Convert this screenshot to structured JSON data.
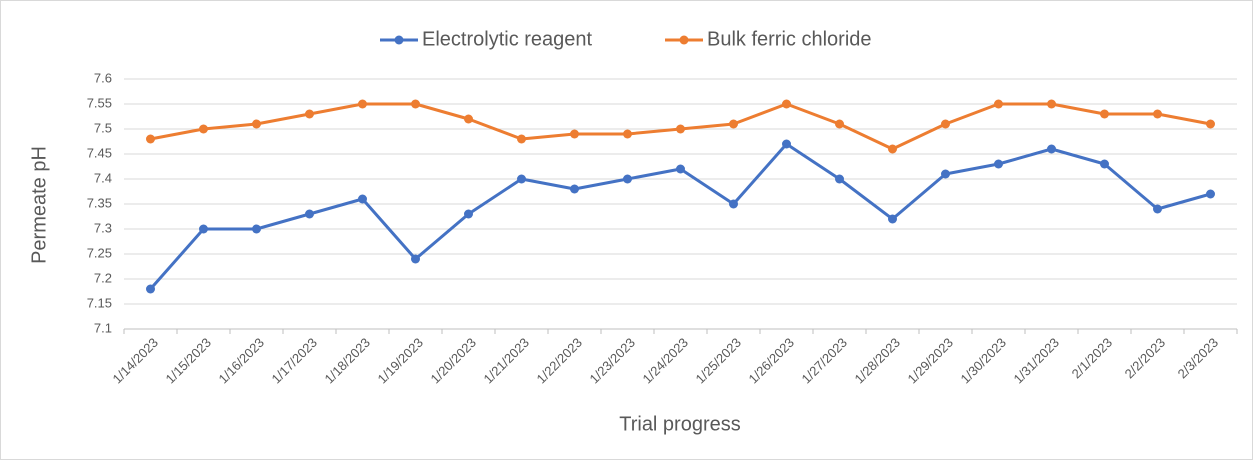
{
  "chart_data": {
    "type": "line",
    "x_label": "Trial progress",
    "y_label": "Permeate pH",
    "categories": [
      "1/14/2023",
      "1/15/2023",
      "1/16/2023",
      "1/17/2023",
      "1/18/2023",
      "1/19/2023",
      "1/20/2023",
      "1/21/2023",
      "1/22/2023",
      "1/23/2023",
      "1/24/2023",
      "1/25/2023",
      "1/26/2023",
      "1/27/2023",
      "1/28/2023",
      "1/29/2023",
      "1/30/2023",
      "1/31/2023",
      "2/1/2023",
      "2/2/2023",
      "2/3/2023"
    ],
    "series": [
      {
        "name": "Electrolytic reagent",
        "color": "#4472c4",
        "values": [
          7.18,
          7.3,
          7.3,
          7.33,
          7.36,
          7.24,
          7.33,
          7.4,
          7.38,
          7.4,
          7.42,
          7.35,
          7.47,
          7.4,
          7.32,
          7.41,
          7.43,
          7.46,
          7.43,
          7.34,
          7.37
        ]
      },
      {
        "name": "Bulk ferric chloride",
        "color": "#ed7d31",
        "values": [
          7.48,
          7.5,
          7.51,
          7.53,
          7.55,
          7.55,
          7.52,
          7.48,
          7.49,
          7.49,
          7.5,
          7.51,
          7.55,
          7.51,
          7.46,
          7.51,
          7.55,
          7.55,
          7.53,
          7.53,
          7.51
        ]
      }
    ],
    "ylim": [
      7.1,
      7.6
    ],
    "yticks": [
      7.1,
      7.15,
      7.2,
      7.25,
      7.3,
      7.35,
      7.4,
      7.45,
      7.5,
      7.55,
      7.6
    ],
    "grid": true,
    "legend": "top"
  }
}
